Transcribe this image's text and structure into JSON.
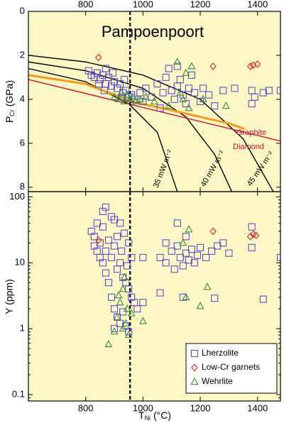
{
  "chart_data": [
    {
      "type": "scatter",
      "title": "Pampoenpoort",
      "y_label": {
        "main": "P",
        "sub": "Cr",
        "unit": " (GPa)"
      },
      "xlim": [
        600,
        1480
      ],
      "xticks": [
        800,
        1000,
        1200,
        1400
      ],
      "ylim": [
        0,
        8.2
      ],
      "yticks": [
        0,
        2,
        4,
        6,
        8
      ],
      "y_inverted": true,
      "vline": 955,
      "series": [
        {
          "name": "Lherzolite",
          "color": "#5a4fcf",
          "marker": "square",
          "x": [
            810,
            820,
            830,
            840,
            850,
            860,
            870,
            880,
            890,
            900,
            910,
            920,
            930,
            940,
            950,
            960,
            845,
            865,
            895,
            925,
            970,
            990,
            1010,
            1030,
            1050,
            1070,
            1080,
            1100,
            1110,
            1120,
            1130,
            1140,
            1150,
            1160,
            1170,
            1180,
            1200,
            1210,
            1230,
            1250,
            1280,
            1320,
            1380,
            1380,
            1390,
            1420,
            1480,
            1440,
            1060,
            1000,
            1090,
            1120,
            870,
            935
          ],
          "y": [
            2.7,
            2.9,
            3.0,
            2.8,
            3.1,
            2.9,
            3.3,
            3.0,
            3.4,
            3.2,
            3.5,
            3.3,
            3.7,
            3.6,
            3.9,
            3.8,
            3.3,
            3.6,
            2.8,
            3.9,
            4.0,
            3.7,
            3.5,
            3.9,
            3.3,
            3.7,
            3.0,
            3.6,
            4.0,
            3.4,
            3.1,
            3.8,
            4.2,
            3.5,
            2.9,
            3.7,
            4.1,
            3.5,
            3.8,
            4.3,
            3.6,
            3.5,
            3.6,
            4.2,
            3.9,
            3.7,
            3.6,
            3.6,
            4.4,
            4.1,
            2.6,
            2.5,
            2.6,
            3.1
          ]
        },
        {
          "name": "Low-Cr garnets",
          "color": "#e02020",
          "marker": "diamond",
          "x": [
            845,
            1245,
            1375,
            1385,
            1400
          ],
          "y": [
            2.1,
            2.5,
            2.5,
            2.45,
            2.4
          ]
        },
        {
          "name": "Wehrlite",
          "color": "#3a8a3a",
          "marker": "triangle",
          "x": [
            900,
            915,
            925,
            935,
            945,
            955,
            965,
            975,
            990,
            1010,
            1120,
            1150,
            1170,
            1090,
            1140,
            1160,
            1210,
            1290,
            1130,
            1040
          ],
          "y": [
            3.9,
            4.0,
            3.7,
            4.1,
            3.8,
            4.0,
            3.9,
            4.1,
            4.0,
            3.9,
            2.3,
            2.8,
            2.5,
            4.3,
            4.0,
            4.4,
            4.0,
            4.3,
            3.7,
            4.1
          ]
        }
      ],
      "lines": [
        {
          "label": "35 mW m⁻²",
          "color": "#000000",
          "x": [
            600,
            800,
            950,
            1050,
            1120
          ],
          "y": [
            2.6,
            3.2,
            4.2,
            5.5,
            8.2
          ]
        },
        {
          "label": "40 mW m⁻²",
          "color": "#000000",
          "x": [
            600,
            800,
            1000,
            1150,
            1250,
            1310
          ],
          "y": [
            2.3,
            2.7,
            3.5,
            4.8,
            6.5,
            8.2
          ]
        },
        {
          "label": "45 mW m⁻²",
          "color": "#000000",
          "x": [
            600,
            800,
            1000,
            1200,
            1350,
            1455
          ],
          "y": [
            2.0,
            2.3,
            2.9,
            4.0,
            5.8,
            8.2
          ]
        },
        {
          "color": "#f39a1e",
          "x": [
            600,
            800,
            900,
            960,
            1100,
            1300,
            1355
          ],
          "y": [
            2.9,
            3.3,
            3.8,
            4.1,
            4.5,
            5.1,
            5.35
          ]
        },
        {
          "color": "#c8102e",
          "x": [
            600,
            1480
          ],
          "y": [
            3.1,
            5.9
          ]
        }
      ],
      "annotations": [
        "Graphite",
        "Diamond"
      ]
    },
    {
      "type": "scatter",
      "log_y": true,
      "y_label": "Y (ppm)",
      "x_label": {
        "main": "T",
        "sub": "Ni",
        "unit": " (°C)"
      },
      "xlim": [
        600,
        1480
      ],
      "xticks": [
        800,
        1000,
        1200,
        1400
      ],
      "ylim": [
        0.08,
        120
      ],
      "yticks": [
        0.1,
        1,
        10,
        100
      ],
      "vline": 955,
      "legend": "lower right",
      "series": [
        {
          "name": "Lherzolite",
          "color": "#5a4fcf",
          "marker": "square",
          "x": [
            820,
            830,
            840,
            850,
            860,
            870,
            880,
            890,
            900,
            910,
            920,
            930,
            940,
            950,
            960,
            970,
            980,
            900,
            910,
            920,
            930,
            940,
            950,
            900,
            890,
            880,
            870,
            860,
            850,
            840,
            830,
            890,
            900,
            920,
            935,
            950,
            960,
            945,
            925,
            910,
            860,
            870,
            1060,
            1080,
            1100,
            1110,
            1120,
            1130,
            1140,
            1150,
            1160,
            1170,
            1180,
            1190,
            1200,
            1220,
            1240,
            1260,
            1280,
            1300,
            1120,
            1150,
            1080,
            1380,
            1380,
            1480,
            1420,
            1140,
            1250,
            1060,
            1000,
            1000
          ],
          "y": [
            30,
            25,
            40,
            20,
            35,
            15,
            22,
            12,
            18,
            8,
            10,
            6,
            5,
            4,
            3,
            2.5,
            2,
            2,
            1.5,
            1.2,
            1.8,
            1.1,
            0.9,
            1,
            3,
            5,
            7,
            10,
            12,
            15,
            18,
            50,
            45,
            40,
            28,
            20,
            12,
            9,
            15,
            25,
            60,
            70,
            12,
            10,
            15,
            8,
            18,
            12,
            9,
            14,
            11,
            16,
            10,
            13,
            17,
            12,
            15,
            18,
            20,
            14,
            40,
            25,
            20,
            35,
            17,
            12,
            2.8,
            3,
            2.9,
            3.5,
            2.5,
            12
          ]
        },
        {
          "name": "Low-Cr garnets",
          "color": "#e02020",
          "marker": "diamond",
          "x": [
            845,
            1245,
            1375,
            1385,
            1395
          ],
          "y": [
            22,
            30,
            25,
            27,
            26
          ]
        },
        {
          "name": "Wehrlite",
          "color": "#3a8a3a",
          "marker": "triangle",
          "x": [
            880,
            900,
            910,
            920,
            930,
            940,
            950,
            930,
            915,
            945,
            935,
            960,
            1160,
            1140,
            1200,
            1225,
            1150,
            1000
          ],
          "y": [
            0.58,
            0.9,
            1.5,
            2.5,
            4,
            1.2,
            0.8,
            1.0,
            3.2,
            2.0,
            6,
            1.7,
            32,
            20,
            2.2,
            4.3,
            3,
            1.3
          ]
        }
      ]
    }
  ]
}
